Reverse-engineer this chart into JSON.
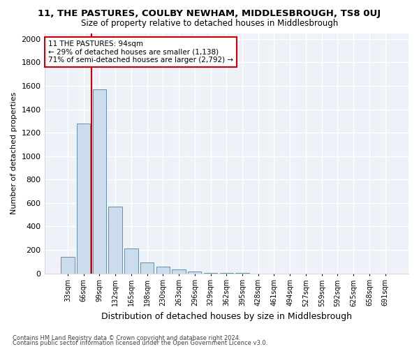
{
  "title": "11, THE PASTURES, COULBY NEWHAM, MIDDLESBROUGH, TS8 0UJ",
  "subtitle": "Size of property relative to detached houses in Middlesbrough",
  "xlabel": "Distribution of detached houses by size in Middlesbrough",
  "ylabel": "Number of detached properties",
  "categories": [
    "33sqm",
    "66sqm",
    "99sqm",
    "132sqm",
    "165sqm",
    "198sqm",
    "230sqm",
    "263sqm",
    "296sqm",
    "329sqm",
    "362sqm",
    "395sqm",
    "428sqm",
    "461sqm",
    "494sqm",
    "527sqm",
    "559sqm",
    "592sqm",
    "625sqm",
    "658sqm",
    "691sqm"
  ],
  "values": [
    140,
    1280,
    1570,
    570,
    210,
    95,
    55,
    30,
    15,
    5,
    5,
    5,
    0,
    0,
    0,
    0,
    0,
    0,
    0,
    0,
    0
  ],
  "bar_color": "#ccdcec",
  "bar_edge_color": "#6090b0",
  "background_color": "#eef2f8",
  "grid_color": "#ffffff",
  "vline_color": "#cc0000",
  "vline_index": 1.5,
  "annotation_text": "11 THE PASTURES: 94sqm\n← 29% of detached houses are smaller (1,138)\n71% of semi-detached houses are larger (2,792) →",
  "annotation_box_facecolor": "#ffffff",
  "annotation_box_edgecolor": "#cc0000",
  "footer1": "Contains HM Land Registry data © Crown copyright and database right 2024.",
  "footer2": "Contains public sector information licensed under the Open Government Licence v3.0.",
  "fig_facecolor": "#ffffff",
  "ylim": [
    0,
    2050
  ],
  "yticks": [
    0,
    200,
    400,
    600,
    800,
    1000,
    1200,
    1400,
    1600,
    1800,
    2000
  ],
  "title_fontsize": 9.5,
  "subtitle_fontsize": 8.5,
  "ylabel_fontsize": 8,
  "xlabel_fontsize": 9,
  "xtick_fontsize": 7,
  "ytick_fontsize": 8,
  "ann_fontsize": 7.5
}
